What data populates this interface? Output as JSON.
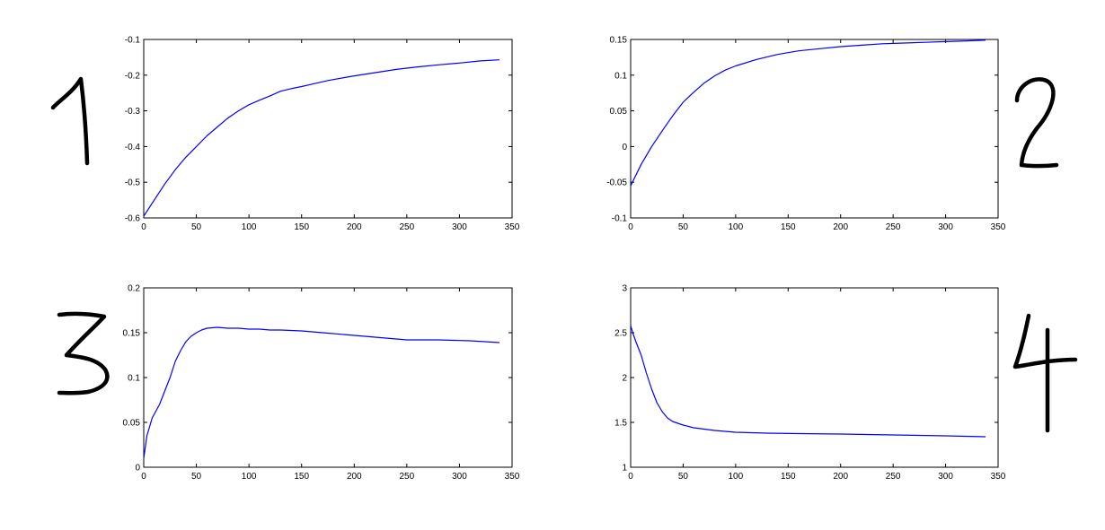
{
  "chart_data": [
    {
      "type": "line",
      "panel_number": "1",
      "xlim": [
        0,
        350
      ],
      "ylim": [
        -0.6,
        -0.1
      ],
      "x_ticks": [
        0,
        50,
        100,
        150,
        200,
        250,
        300,
        350
      ],
      "y_ticks": [
        -0.6,
        -0.5,
        -0.4,
        -0.3,
        -0.2,
        -0.1
      ],
      "x_tick_labels": [
        "0",
        "50",
        "100",
        "150",
        "200",
        "250",
        "300",
        "350"
      ],
      "y_tick_labels": [
        "-0.6",
        "-0.5",
        "-0.4",
        "-0.3",
        "-0.2",
        "-0.1"
      ],
      "series": [
        {
          "color": "#0000ff",
          "x": [
            0,
            10,
            20,
            30,
            40,
            50,
            60,
            70,
            80,
            90,
            100,
            110,
            120,
            130,
            140,
            150,
            160,
            175,
            190,
            200,
            220,
            240,
            260,
            280,
            300,
            320,
            338
          ],
          "y": [
            -0.595,
            -0.55,
            -0.505,
            -0.465,
            -0.43,
            -0.4,
            -0.37,
            -0.345,
            -0.32,
            -0.3,
            -0.283,
            -0.27,
            -0.258,
            -0.245,
            -0.238,
            -0.232,
            -0.225,
            -0.215,
            -0.207,
            -0.202,
            -0.193,
            -0.184,
            -0.177,
            -0.171,
            -0.166,
            -0.16,
            -0.157
          ]
        }
      ]
    },
    {
      "type": "line",
      "panel_number": "2",
      "xlim": [
        0,
        350
      ],
      "ylim": [
        -0.1,
        0.15
      ],
      "x_ticks": [
        0,
        50,
        100,
        150,
        200,
        250,
        300,
        350
      ],
      "y_ticks": [
        -0.1,
        -0.05,
        0,
        0.05,
        0.1,
        0.15
      ],
      "x_tick_labels": [
        "0",
        "50",
        "100",
        "150",
        "200",
        "250",
        "300",
        "350"
      ],
      "y_tick_labels": [
        "-0.1",
        "-0.05",
        "0",
        "0.05",
        "0.1",
        "0.15"
      ],
      "series": [
        {
          "color": "#0000ff",
          "x": [
            0,
            10,
            20,
            30,
            40,
            50,
            60,
            70,
            80,
            90,
            100,
            120,
            140,
            160,
            180,
            200,
            220,
            240,
            260,
            280,
            300,
            320,
            338
          ],
          "y": [
            -0.055,
            -0.025,
            0.0,
            0.022,
            0.043,
            0.062,
            0.076,
            0.089,
            0.099,
            0.107,
            0.113,
            0.122,
            0.129,
            0.134,
            0.137,
            0.14,
            0.142,
            0.144,
            0.145,
            0.146,
            0.147,
            0.148,
            0.149
          ]
        }
      ]
    },
    {
      "type": "line",
      "panel_number": "3",
      "xlim": [
        0,
        350
      ],
      "ylim": [
        0,
        0.2
      ],
      "x_ticks": [
        0,
        50,
        100,
        150,
        200,
        250,
        300,
        350
      ],
      "y_ticks": [
        0,
        0.05,
        0.1,
        0.15,
        0.2
      ],
      "x_tick_labels": [
        "0",
        "50",
        "100",
        "150",
        "200",
        "250",
        "300",
        "350"
      ],
      "y_tick_labels": [
        "0",
        "0.05",
        "0.1",
        "0.15",
        "0.2"
      ],
      "series": [
        {
          "color": "#0000ff",
          "x": [
            0,
            3,
            8,
            15,
            20,
            25,
            30,
            35,
            40,
            45,
            50,
            55,
            60,
            70,
            80,
            90,
            100,
            110,
            120,
            130,
            150,
            170,
            200,
            230,
            250,
            280,
            310,
            338
          ],
          "y": [
            0.01,
            0.035,
            0.055,
            0.07,
            0.085,
            0.1,
            0.118,
            0.13,
            0.14,
            0.146,
            0.15,
            0.153,
            0.155,
            0.156,
            0.155,
            0.155,
            0.154,
            0.154,
            0.153,
            0.153,
            0.152,
            0.15,
            0.147,
            0.144,
            0.142,
            0.142,
            0.141,
            0.139
          ]
        }
      ]
    },
    {
      "type": "line",
      "panel_number": "4",
      "xlim": [
        0,
        350
      ],
      "ylim": [
        1,
        3
      ],
      "x_ticks": [
        0,
        50,
        100,
        150,
        200,
        250,
        300,
        350
      ],
      "y_ticks": [
        1,
        1.5,
        2,
        2.5,
        3
      ],
      "x_tick_labels": [
        "0",
        "50",
        "100",
        "150",
        "200",
        "250",
        "300",
        "350"
      ],
      "y_tick_labels": [
        "1",
        "1.5",
        "2",
        "2.5",
        "3"
      ],
      "series": [
        {
          "color": "#0000ff",
          "x": [
            0,
            2,
            5,
            10,
            15,
            20,
            25,
            30,
            35,
            40,
            50,
            60,
            80,
            100,
            130,
            160,
            200,
            250,
            300,
            338
          ],
          "y": [
            2.58,
            2.5,
            2.4,
            2.25,
            2.05,
            1.87,
            1.72,
            1.62,
            1.55,
            1.51,
            1.47,
            1.44,
            1.41,
            1.39,
            1.38,
            1.375,
            1.37,
            1.36,
            1.35,
            1.34
          ]
        }
      ]
    }
  ]
}
